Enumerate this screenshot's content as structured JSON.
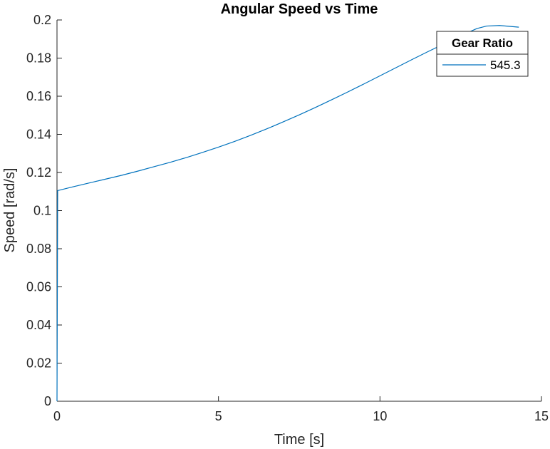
{
  "chart_data": {
    "type": "line",
    "title": "Angular Speed vs Time",
    "xlabel": "Time [s]",
    "ylabel": "Speed [rad/s]",
    "xlim": [
      0,
      15
    ],
    "ylim": [
      0,
      0.2
    ],
    "xticks": [
      0,
      5,
      10,
      15
    ],
    "xtick_labels": [
      "0",
      "5",
      "10",
      "15"
    ],
    "yticks": [
      0,
      0.02,
      0.04,
      0.06,
      0.08,
      0.1,
      0.12,
      0.14,
      0.16,
      0.18,
      0.2
    ],
    "ytick_labels": [
      "0",
      "0.02",
      "0.04",
      "0.06",
      "0.08",
      "0.1",
      "0.12",
      "0.14",
      "0.16",
      "0.18",
      "0.2"
    ],
    "grid": false,
    "legend": {
      "title": "Gear Ratio",
      "placement": "top-right"
    },
    "series": [
      {
        "name": "545.3",
        "color": "#0072BD",
        "x": [
          0,
          0.02,
          0.5,
          1,
          1.5,
          2,
          2.5,
          3,
          3.5,
          4,
          4.5,
          5,
          5.5,
          6,
          6.5,
          7,
          7.5,
          8,
          8.5,
          9,
          9.5,
          10,
          10.5,
          11,
          11.5,
          12,
          12.5,
          13,
          13.3,
          13.7,
          14.3
        ],
        "y": [
          0,
          0.1105,
          0.1125,
          0.1145,
          0.1165,
          0.1185,
          0.1207,
          0.123,
          0.1253,
          0.1278,
          0.1305,
          0.1333,
          0.1363,
          0.1395,
          0.1429,
          0.1465,
          0.1502,
          0.1541,
          0.1581,
          0.1622,
          0.1664,
          0.1707,
          0.175,
          0.1793,
          0.1835,
          0.1876,
          0.1917,
          0.1955,
          0.1968,
          0.1971,
          0.1962
        ]
      }
    ]
  }
}
